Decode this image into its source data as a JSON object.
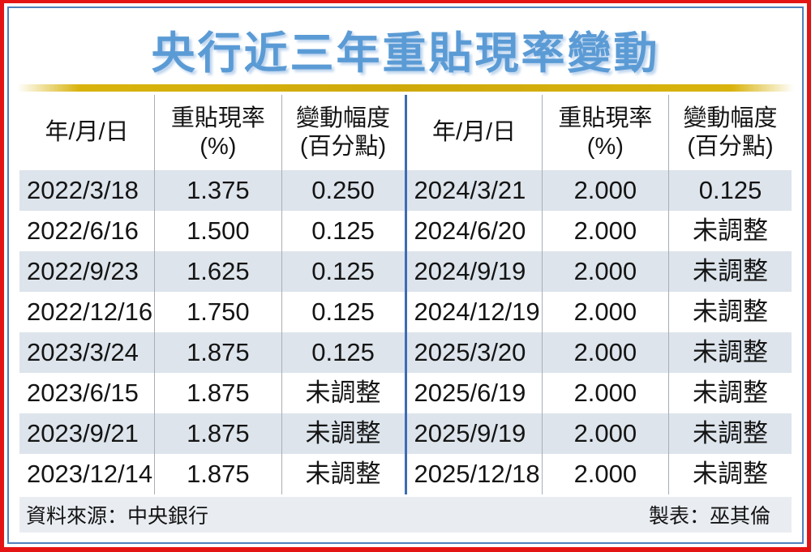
{
  "title": "央行近三年重貼現率變動",
  "headers": {
    "date": "年/月/日",
    "rate_line1": "重貼現率",
    "rate_line2": "(%)",
    "change_line1": "變動幅度",
    "change_line2": "(百分點)"
  },
  "chart_data": {
    "type": "table",
    "title": "央行近三年重貼現率變動",
    "columns": [
      "年/月/日",
      "重貼現率(%)",
      "變動幅度(百分點)"
    ],
    "left_rows": [
      [
        "2022/3/18",
        "1.375",
        "0.250"
      ],
      [
        "2022/6/16",
        "1.500",
        "0.125"
      ],
      [
        "2022/9/23",
        "1.625",
        "0.125"
      ],
      [
        "2022/12/16",
        "1.750",
        "0.125"
      ],
      [
        "2023/3/24",
        "1.875",
        "0.125"
      ],
      [
        "2023/6/15",
        "1.875",
        "未調整"
      ],
      [
        "2023/9/21",
        "1.875",
        "未調整"
      ],
      [
        "2023/12/14",
        "1.875",
        "未調整"
      ]
    ],
    "right_rows": [
      [
        "2024/3/21",
        "2.000",
        "0.125"
      ],
      [
        "2024/6/20",
        "2.000",
        "未調整"
      ],
      [
        "2024/9/19",
        "2.000",
        "未調整"
      ],
      [
        "2024/12/19",
        "2.000",
        "未調整"
      ],
      [
        "2025/3/20",
        "2.000",
        "未調整"
      ],
      [
        "2025/6/19",
        "2.000",
        "未調整"
      ],
      [
        "2025/9/19",
        "2.000",
        "未調整"
      ],
      [
        "2025/12/18",
        "2.000",
        "未調整"
      ]
    ]
  },
  "footer": {
    "source": "資料來源：中央銀行",
    "credit": "製表：巫其倫"
  },
  "colors": {
    "frame-red": "#e51414",
    "frame-blue": "#4f81bd",
    "title-blue": "#5b9bd5",
    "gold": "#d9b30d",
    "stripe": "#dde4ec",
    "footer-bg": "#e9edf2",
    "divider-gray": "#a8aeb6",
    "center-divider": "#3d6cb4"
  }
}
